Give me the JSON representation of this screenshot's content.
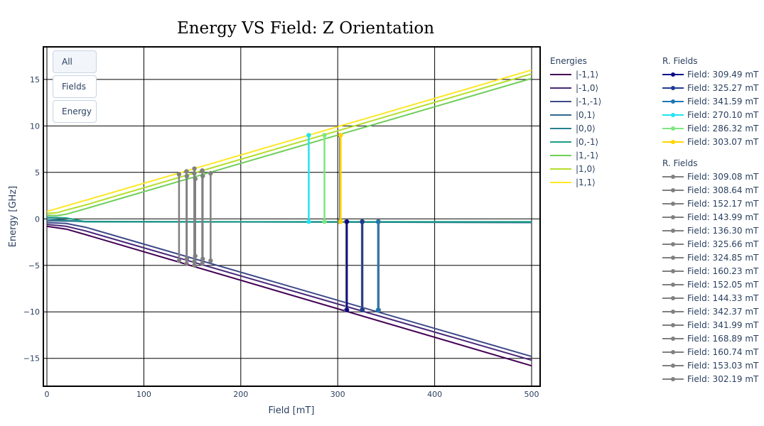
{
  "chart_data": {
    "type": "line",
    "title": "Energy VS Field: Z Orientation",
    "xlabel": "Field [mT]",
    "ylabel": "Energy [GHz]",
    "xlim": [
      0,
      500
    ],
    "ylim": [
      -18,
      18.5
    ],
    "xticks": [
      0,
      100,
      200,
      300,
      400,
      500
    ],
    "yticks": [
      -15,
      -10,
      -5,
      0,
      5,
      10,
      15
    ],
    "grid": true,
    "buttons": [
      "All",
      "Fields",
      "Energy"
    ],
    "energies_legend_title": "Energies",
    "series": [
      {
        "name": "|-1,1⟩",
        "color": "#440154",
        "x": [
          0,
          20,
          40,
          500
        ],
        "y": [
          -0.8,
          -1.1,
          -1.7,
          -15.8
        ]
      },
      {
        "name": "|-1,0⟩",
        "color": "#482878",
        "x": [
          0,
          20,
          40,
          500
        ],
        "y": [
          -0.6,
          -0.8,
          -1.3,
          -15.2
        ]
      },
      {
        "name": "|-1,-1⟩",
        "color": "#3e4989",
        "x": [
          0,
          20,
          40,
          500
        ],
        "y": [
          -0.4,
          -0.5,
          -0.9,
          -14.8
        ]
      },
      {
        "name": "|0,1⟩",
        "color": "#31688e",
        "x": [
          0,
          40,
          500
        ],
        "y": [
          -0.2,
          -0.28,
          -0.4
        ]
      },
      {
        "name": "|0,0⟩",
        "color": "#26828e",
        "x": [
          0,
          40,
          500
        ],
        "y": [
          0.0,
          -0.32,
          -0.35
        ]
      },
      {
        "name": "|0,-1⟩",
        "color": "#1f9e89",
        "x": [
          0,
          20,
          40,
          500
        ],
        "y": [
          0.2,
          0.1,
          -0.3,
          -0.3
        ]
      },
      {
        "name": "|1,-1⟩",
        "color": "#6ece58",
        "x": [
          0,
          10,
          20,
          40,
          500
        ],
        "y": [
          0.4,
          0.35,
          0.5,
          1.1,
          15.1
        ]
      },
      {
        "name": "|1,0⟩",
        "color": "#b5de2b",
        "x": [
          0,
          10,
          20,
          40,
          500
        ],
        "y": [
          0.6,
          0.65,
          0.95,
          1.5,
          15.6
        ]
      },
      {
        "name": "|1,1⟩",
        "color": "#fde725",
        "x": [
          0,
          20,
          40,
          500
        ],
        "y": [
          0.8,
          1.4,
          2.0,
          16.0
        ]
      }
    ],
    "resonance_groups": [
      {
        "title": "R. Fields",
        "items": [
          {
            "label": "Field: 309.49 mT",
            "color": "#0d0887",
            "x": 309.49,
            "y": [
              -0.3,
              -9.8
            ]
          },
          {
            "label": "Field: 325.27 mT",
            "color": "#1f3a93",
            "x": 325.27,
            "y": [
              -0.3,
              -9.8
            ]
          },
          {
            "label": "Field: 341.59 mT",
            "color": "#1f77b4",
            "x": 341.59,
            "y": [
              -0.3,
              -9.8
            ]
          },
          {
            "label": "Field: 270.10 mT",
            "color": "#22e3f0",
            "x": 270.1,
            "y": [
              -0.3,
              9.0
            ]
          },
          {
            "label": "Field: 286.32 mT",
            "color": "#7fe67f",
            "x": 286.32,
            "y": [
              -0.3,
              9.0
            ]
          },
          {
            "label": "Field: 303.07 mT",
            "color": "#ffd500",
            "x": 303.07,
            "y": [
              -0.3,
              9.0
            ]
          }
        ]
      },
      {
        "title": "R. Fields",
        "items": [
          {
            "label": "Field: 309.08 mT",
            "color": "#808080",
            "x": 309.08,
            "y": [
              -0.3,
              -9.8
            ]
          },
          {
            "label": "Field: 308.64 mT",
            "color": "#808080",
            "x": 308.64,
            "y": [
              -0.3,
              -9.8
            ]
          },
          {
            "label": "Field: 152.17 mT",
            "color": "#808080",
            "x": 152.17,
            "y": [
              5.4,
              -5.0
            ]
          },
          {
            "label": "Field: 143.99 mT",
            "color": "#808080",
            "x": 143.99,
            "y": [
              5.1,
              -4.8
            ]
          },
          {
            "label": "Field: 136.30 mT",
            "color": "#808080",
            "x": 136.3,
            "y": [
              4.8,
              -4.5
            ]
          },
          {
            "label": "Field: 325.66 mT",
            "color": "#808080",
            "x": 325.66,
            "y": [
              -0.3,
              -9.8
            ]
          },
          {
            "label": "Field: 324.85 mT",
            "color": "#808080",
            "x": 324.85,
            "y": [
              -0.3,
              -9.8
            ]
          },
          {
            "label": "Field: 160.23 mT",
            "color": "#808080",
            "x": 160.23,
            "y": [
              5.2,
              -4.8
            ]
          },
          {
            "label": "Field: 152.05 mT",
            "color": "#808080",
            "x": 152.05,
            "y": [
              4.9,
              -4.6
            ]
          },
          {
            "label": "Field: 144.33 mT",
            "color": "#808080",
            "x": 144.33,
            "y": [
              4.6,
              -4.3
            ]
          },
          {
            "label": "Field: 342.37 mT",
            "color": "#808080",
            "x": 342.37,
            "y": [
              -0.3,
              -9.8
            ]
          },
          {
            "label": "Field: 341.99 mT",
            "color": "#808080",
            "x": 341.99,
            "y": [
              -0.3,
              -9.8
            ]
          },
          {
            "label": "Field: 168.89 mT",
            "color": "#808080",
            "x": 168.89,
            "y": [
              4.9,
              -4.5
            ]
          },
          {
            "label": "Field: 160.74 mT",
            "color": "#808080",
            "x": 160.74,
            "y": [
              4.6,
              -4.3
            ]
          },
          {
            "label": "Field: 153.03 mT",
            "color": "#808080",
            "x": 153.03,
            "y": [
              4.3,
              -4.0
            ]
          },
          {
            "label": "Field: 302.19 mT",
            "color": "#808080",
            "x": 302.19,
            "y": [
              -0.3,
              9.0
            ]
          }
        ]
      }
    ]
  }
}
